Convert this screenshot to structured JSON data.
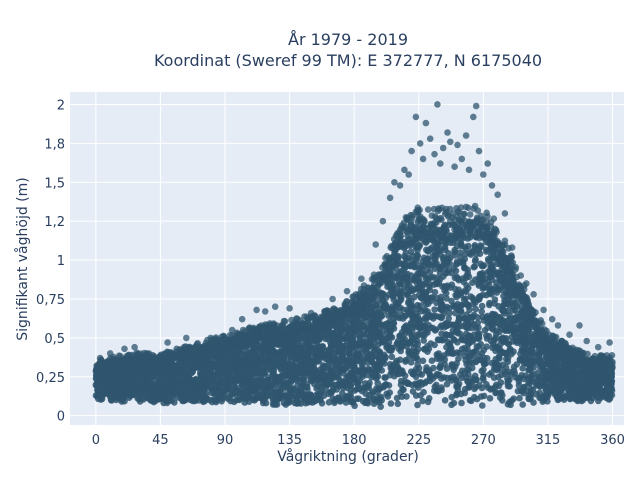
{
  "chart_data": {
    "type": "scatter",
    "title_line1": "År 1979 - 2019",
    "title_line2": "Koordinat (Sweref 99 TM): E 372777, N 6175040",
    "xlabel": "Vågriktning (grader)",
    "ylabel": "Signifikant våghöjd (m)",
    "xlim": [
      -18,
      368
    ],
    "ylim": [
      -0.06,
      2.08
    ],
    "x_ticks": [
      0,
      45,
      90,
      135,
      180,
      225,
      270,
      315,
      360
    ],
    "x_tick_labels": [
      "0",
      "45",
      "90",
      "135",
      "180",
      "225",
      "270",
      "315",
      "360"
    ],
    "y_ticks": [
      0,
      0.25,
      0.5,
      0.75,
      1,
      1.25,
      1.5,
      1.75,
      2
    ],
    "y_tick_labels": [
      "0",
      "0,25",
      "0,5",
      "0,75",
      "1",
      "1,2",
      "1,5",
      "1,8",
      "2"
    ],
    "grid": true,
    "colors": {
      "marker": "#2f566e",
      "plot_background": "#e5ecf6",
      "grid": "#ffffff"
    },
    "envelope": {
      "x": [
        0,
        15,
        30,
        45,
        60,
        75,
        90,
        105,
        120,
        135,
        150,
        165,
        180,
        195,
        205,
        215,
        225,
        235,
        245,
        255,
        265,
        275,
        285,
        295,
        305,
        315,
        330,
        345,
        360
      ],
      "lower": [
        0.1,
        0.09,
        0.09,
        0.08,
        0.08,
        0.08,
        0.08,
        0.08,
        0.07,
        0.07,
        0.06,
        0.06,
        0.06,
        0.05,
        0.06,
        0.06,
        0.06,
        0.06,
        0.06,
        0.06,
        0.06,
        0.06,
        0.06,
        0.06,
        0.07,
        0.08,
        0.09,
        0.09,
        0.1
      ],
      "upper": [
        0.33,
        0.36,
        0.38,
        0.37,
        0.41,
        0.45,
        0.48,
        0.52,
        0.55,
        0.57,
        0.6,
        0.64,
        0.72,
        0.85,
        1.0,
        1.18,
        1.26,
        1.24,
        1.24,
        1.25,
        1.26,
        1.22,
        1.05,
        0.85,
        0.65,
        0.5,
        0.42,
        0.36,
        0.36
      ]
    },
    "outliers": [
      [
        3,
        0.37
      ],
      [
        10,
        0.4
      ],
      [
        20,
        0.43
      ],
      [
        27,
        0.44
      ],
      [
        50,
        0.47
      ],
      [
        63,
        0.5
      ],
      [
        80,
        0.5
      ],
      [
        95,
        0.55
      ],
      [
        102,
        0.62
      ],
      [
        112,
        0.68
      ],
      [
        118,
        0.67
      ],
      [
        125,
        0.7
      ],
      [
        135,
        0.69
      ],
      [
        150,
        0.66
      ],
      [
        165,
        0.75
      ],
      [
        175,
        0.8
      ],
      [
        185,
        0.88
      ],
      [
        195,
        1.1
      ],
      [
        200,
        1.25
      ],
      [
        205,
        1.4
      ],
      [
        208,
        1.5
      ],
      [
        212,
        1.48
      ],
      [
        215,
        1.58
      ],
      [
        218,
        1.55
      ],
      [
        220,
        1.7
      ],
      [
        223,
        1.92
      ],
      [
        226,
        1.75
      ],
      [
        228,
        1.65
      ],
      [
        230,
        1.88
      ],
      [
        233,
        1.78
      ],
      [
        236,
        1.68
      ],
      [
        238,
        2.0
      ],
      [
        240,
        1.62
      ],
      [
        242,
        1.72
      ],
      [
        245,
        1.82
      ],
      [
        247,
        1.76
      ],
      [
        250,
        1.6
      ],
      [
        252,
        1.74
      ],
      [
        255,
        1.65
      ],
      [
        258,
        1.8
      ],
      [
        260,
        1.58
      ],
      [
        263,
        1.92
      ],
      [
        265,
        1.99
      ],
      [
        267,
        1.7
      ],
      [
        270,
        1.55
      ],
      [
        273,
        1.62
      ],
      [
        276,
        1.48
      ],
      [
        280,
        1.42
      ],
      [
        285,
        1.3
      ],
      [
        290,
        1.08
      ],
      [
        296,
        0.9
      ],
      [
        300,
        0.85
      ],
      [
        305,
        0.78
      ],
      [
        312,
        0.68
      ],
      [
        318,
        0.62
      ],
      [
        322,
        0.58
      ],
      [
        330,
        0.52
      ],
      [
        337,
        0.58
      ],
      [
        342,
        0.48
      ],
      [
        350,
        0.44
      ],
      [
        358,
        0.47
      ]
    ]
  }
}
